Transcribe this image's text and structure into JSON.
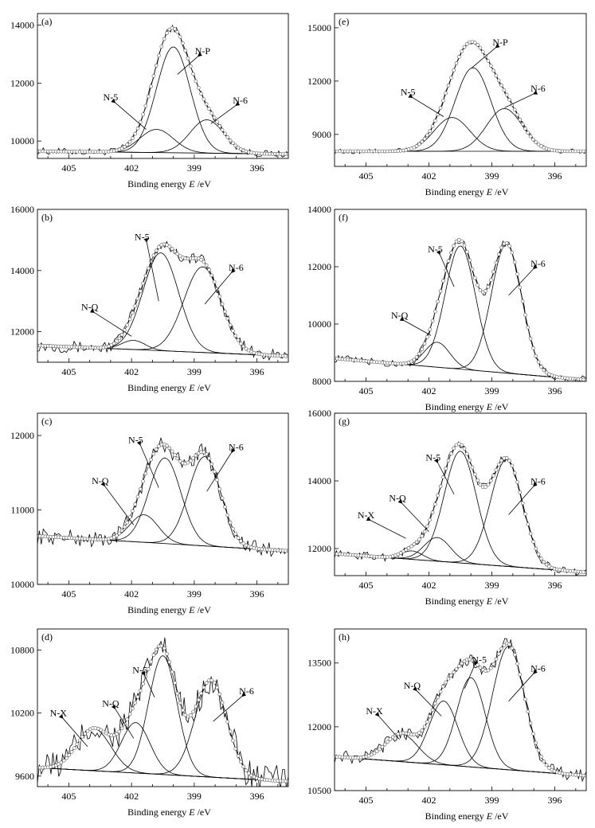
{
  "figure": {
    "axis_xlabel": "Binding energy",
    "axis_xlabel_italic": "E",
    "axis_xlabel_unit": "/eV"
  },
  "chart_data": [
    {
      "panel": "(a)",
      "type": "line",
      "xlabel": "Binding energy E /eV",
      "xlim": [
        406.5,
        394.5
      ],
      "ylim": [
        9400,
        14400
      ],
      "xticks": [
        405,
        402,
        399,
        396
      ],
      "yticks": [
        10000,
        12000,
        14000
      ],
      "baseline": [
        [
          406.5,
          9650
        ],
        [
          394.5,
          9550
        ]
      ],
      "noise_amp": 120,
      "fit_marker": "open-circle",
      "peaks": [
        {
          "name": "N-5",
          "center": 400.8,
          "height": 800,
          "fwhm": 1.9
        },
        {
          "name": "N-P",
          "center": 400.0,
          "height": 3650,
          "fwhm": 1.9
        },
        {
          "name": "N-6",
          "center": 398.4,
          "height": 1150,
          "fwhm": 1.9
        }
      ],
      "labels": [
        {
          "text": "N-P",
          "x": 398.6,
          "y": 13000,
          "tip": [
            399.8,
            12300
          ]
        },
        {
          "text": "N-5",
          "x": 403.0,
          "y": 11400,
          "tip": [
            401.3,
            10400
          ]
        },
        {
          "text": "N-6",
          "x": 396.8,
          "y": 11300,
          "tip": [
            398.2,
            10600
          ]
        }
      ]
    },
    {
      "panel": "(b)",
      "type": "line",
      "xlabel": "Binding energy E /eV",
      "xlim": [
        406.5,
        394.5
      ],
      "ylim": [
        11000,
        16000
      ],
      "xticks": [
        405,
        402,
        399,
        396
      ],
      "yticks": [
        12000,
        14000,
        16000
      ],
      "baseline": [
        [
          406.5,
          11550
        ],
        [
          394.5,
          11200
        ]
      ],
      "noise_amp": 200,
      "fit_marker": "open-circle",
      "peaks": [
        {
          "name": "N-Q",
          "center": 401.9,
          "height": 300,
          "fwhm": 1.3
        },
        {
          "name": "N-5",
          "center": 400.6,
          "height": 3200,
          "fwhm": 2.0
        },
        {
          "name": "N-6",
          "center": 398.6,
          "height": 2800,
          "fwhm": 2.1
        }
      ],
      "labels": [
        {
          "text": "N-5",
          "x": 401.5,
          "y": 15000,
          "tip": [
            400.7,
            13000
          ]
        },
        {
          "text": "N-Q",
          "x": 404.0,
          "y": 12700,
          "tip": [
            402.0,
            11850
          ]
        },
        {
          "text": "N-6",
          "x": 397.0,
          "y": 14000,
          "tip": [
            398.5,
            12900
          ]
        }
      ]
    },
    {
      "panel": "(c)",
      "type": "line",
      "xlabel": "Binding energy E /eV",
      "xlim": [
        406.5,
        394.5
      ],
      "ylim": [
        10000,
        12300
      ],
      "xticks": [
        405,
        402,
        399,
        396
      ],
      "yticks": [
        10000,
        11000,
        12000
      ],
      "baseline": [
        [
          406.5,
          10650
        ],
        [
          394.5,
          10450
        ]
      ],
      "noise_amp": 110,
      "fit_marker": "open-circle",
      "peaks": [
        {
          "name": "N-Q",
          "center": 401.4,
          "height": 370,
          "fwhm": 1.6
        },
        {
          "name": "N-5",
          "center": 400.4,
          "height": 1150,
          "fwhm": 1.8
        },
        {
          "name": "N-6",
          "center": 398.5,
          "height": 1200,
          "fwhm": 1.8
        }
      ],
      "labels": [
        {
          "text": "N-5",
          "x": 401.8,
          "y": 11900,
          "tip": [
            400.7,
            11300
          ]
        },
        {
          "text": "N-Q",
          "x": 403.5,
          "y": 11350,
          "tip": [
            401.9,
            10800
          ]
        },
        {
          "text": "N-6",
          "x": 397.0,
          "y": 11800,
          "tip": [
            398.4,
            11250
          ]
        }
      ]
    },
    {
      "panel": "(d)",
      "type": "line",
      "xlabel": "Binding energy E /eV",
      "xlim": [
        406.5,
        394.5
      ],
      "ylim": [
        9500,
        11000
      ],
      "xticks": [
        405,
        402,
        399,
        396
      ],
      "yticks": [
        9600,
        10200,
        10800
      ],
      "baseline": [
        [
          406.5,
          9680
        ],
        [
          394.5,
          9550
        ]
      ],
      "noise_amp": 150,
      "fit_marker": "open-circle",
      "peaks": [
        {
          "name": "N-X",
          "center": 403.8,
          "height": 400,
          "fwhm": 1.9
        },
        {
          "name": "N-Q",
          "center": 401.8,
          "height": 480,
          "fwhm": 1.6
        },
        {
          "name": "N-5",
          "center": 400.5,
          "height": 1130,
          "fwhm": 1.6
        },
        {
          "name": "N-6",
          "center": 398.2,
          "height": 920,
          "fwhm": 1.8
        }
      ],
      "labels": [
        {
          "text": "N-5",
          "x": 401.6,
          "y": 10580,
          "tip": [
            400.9,
            10350
          ]
        },
        {
          "text": "N-Q",
          "x": 403.0,
          "y": 10260,
          "tip": [
            401.9,
            9960
          ]
        },
        {
          "text": "N-X",
          "x": 405.5,
          "y": 10170,
          "tip": [
            404.1,
            9880
          ]
        },
        {
          "text": "N-6",
          "x": 396.5,
          "y": 10380,
          "tip": [
            398.1,
            10120
          ]
        }
      ]
    },
    {
      "panel": "(e)",
      "type": "line",
      "xlabel": "Binding energy E /eV",
      "xlim": [
        406.5,
        394.5
      ],
      "ylim": [
        7200,
        15800
      ],
      "xticks": [
        405,
        402,
        399,
        396
      ],
      "yticks": [
        9000,
        12000,
        15000
      ],
      "baseline": [
        [
          406.5,
          8050
        ],
        [
          394.5,
          8050
        ]
      ],
      "noise_amp": 140,
      "fit_marker": "open-circle",
      "peaks": [
        {
          "name": "N-5",
          "center": 400.9,
          "height": 1900,
          "fwhm": 2.0
        },
        {
          "name": "N-P",
          "center": 399.9,
          "height": 4700,
          "fwhm": 2.0
        },
        {
          "name": "N-6",
          "center": 398.4,
          "height": 2400,
          "fwhm": 2.0
        }
      ],
      "labels": [
        {
          "text": "N-P",
          "x": 398.6,
          "y": 14000,
          "tip": [
            400.0,
            12700
          ]
        },
        {
          "text": "N-5",
          "x": 403.0,
          "y": 11200,
          "tip": [
            401.3,
            10000
          ]
        },
        {
          "text": "N-6",
          "x": 396.8,
          "y": 11400,
          "tip": [
            398.4,
            10500
          ]
        }
      ]
    },
    {
      "panel": "(f)",
      "type": "line",
      "xlabel": "Binding energy E /eV",
      "xlim": [
        406.5,
        394.5
      ],
      "ylim": [
        8000,
        14000
      ],
      "xticks": [
        405,
        402,
        399,
        396
      ],
      "yticks": [
        8000,
        10000,
        12000,
        14000
      ],
      "baseline": [
        [
          406.5,
          8800
        ],
        [
          394.5,
          8050
        ]
      ],
      "noise_amp": 140,
      "fit_marker": "open-circle",
      "peaks": [
        {
          "name": "N-Q",
          "center": 401.6,
          "height": 870,
          "fwhm": 1.4
        },
        {
          "name": "N-5",
          "center": 400.5,
          "height": 4300,
          "fwhm": 1.7
        },
        {
          "name": "N-6",
          "center": 398.3,
          "height": 4500,
          "fwhm": 1.7
        }
      ],
      "labels": [
        {
          "text": "N-5",
          "x": 401.7,
          "y": 12500,
          "tip": [
            400.8,
            11300
          ]
        },
        {
          "text": "N-Q",
          "x": 403.4,
          "y": 10200,
          "tip": [
            401.9,
            9600
          ]
        },
        {
          "text": "N-6",
          "x": 396.8,
          "y": 12000,
          "tip": [
            398.2,
            11000
          ]
        }
      ]
    },
    {
      "panel": "(g)",
      "type": "line",
      "xlabel": "Binding energy E /eV",
      "xlim": [
        406.5,
        394.5
      ],
      "ylim": [
        11200,
        16000
      ],
      "xticks": [
        405,
        402,
        399,
        396
      ],
      "yticks": [
        12000,
        14000,
        16000
      ],
      "baseline": [
        [
          406.5,
          11850
        ],
        [
          394.5,
          11300
        ]
      ],
      "noise_amp": 120,
      "fit_marker": "open-circle",
      "peaks": [
        {
          "name": "N-X",
          "center": 402.8,
          "height": 250,
          "fwhm": 1.2
        },
        {
          "name": "N-Q",
          "center": 401.6,
          "height": 700,
          "fwhm": 1.5
        },
        {
          "name": "N-5",
          "center": 400.5,
          "height": 3300,
          "fwhm": 1.8
        },
        {
          "name": "N-6",
          "center": 398.3,
          "height": 3150,
          "fwhm": 1.8
        }
      ],
      "labels": [
        {
          "text": "N-5",
          "x": 401.8,
          "y": 14600,
          "tip": [
            400.8,
            13600
          ]
        },
        {
          "text": "N-Q",
          "x": 403.5,
          "y": 13400,
          "tip": [
            402.0,
            12500
          ]
        },
        {
          "text": "N-X",
          "x": 405.0,
          "y": 12900,
          "tip": [
            403.1,
            12300
          ]
        },
        {
          "text": "N-6",
          "x": 396.8,
          "y": 13900,
          "tip": [
            398.2,
            13000
          ]
        }
      ]
    },
    {
      "panel": "(h)",
      "type": "line",
      "xlabel": "Binding energy E /eV",
      "xlim": [
        406.5,
        394.5
      ],
      "ylim": [
        10500,
        14300
      ],
      "xticks": [
        405,
        402,
        399,
        396
      ],
      "yticks": [
        10500,
        12000,
        13500
      ],
      "baseline": [
        [
          406.5,
          11300
        ],
        [
          394.5,
          10850
        ]
      ],
      "noise_amp": 150,
      "fit_marker": "open-circle",
      "peaks": [
        {
          "name": "N-X",
          "center": 403.3,
          "height": 650,
          "fwhm": 1.8
        },
        {
          "name": "N-Q",
          "center": 401.3,
          "height": 1500,
          "fwhm": 1.6
        },
        {
          "name": "N-5",
          "center": 400.0,
          "height": 2100,
          "fwhm": 1.6
        },
        {
          "name": "N-6",
          "center": 398.2,
          "height": 2900,
          "fwhm": 1.8
        }
      ],
      "labels": [
        {
          "text": "N-5",
          "x": 399.6,
          "y": 13500,
          "tip": [
            400.3,
            12900
          ]
        },
        {
          "text": "N-Q",
          "x": 402.8,
          "y": 12900,
          "tip": [
            401.4,
            12250
          ]
        },
        {
          "text": "N-X",
          "x": 404.6,
          "y": 12300,
          "tip": [
            403.4,
            11700
          ]
        },
        {
          "text": "N-6",
          "x": 396.8,
          "y": 13300,
          "tip": [
            398.2,
            12600
          ]
        }
      ]
    }
  ]
}
